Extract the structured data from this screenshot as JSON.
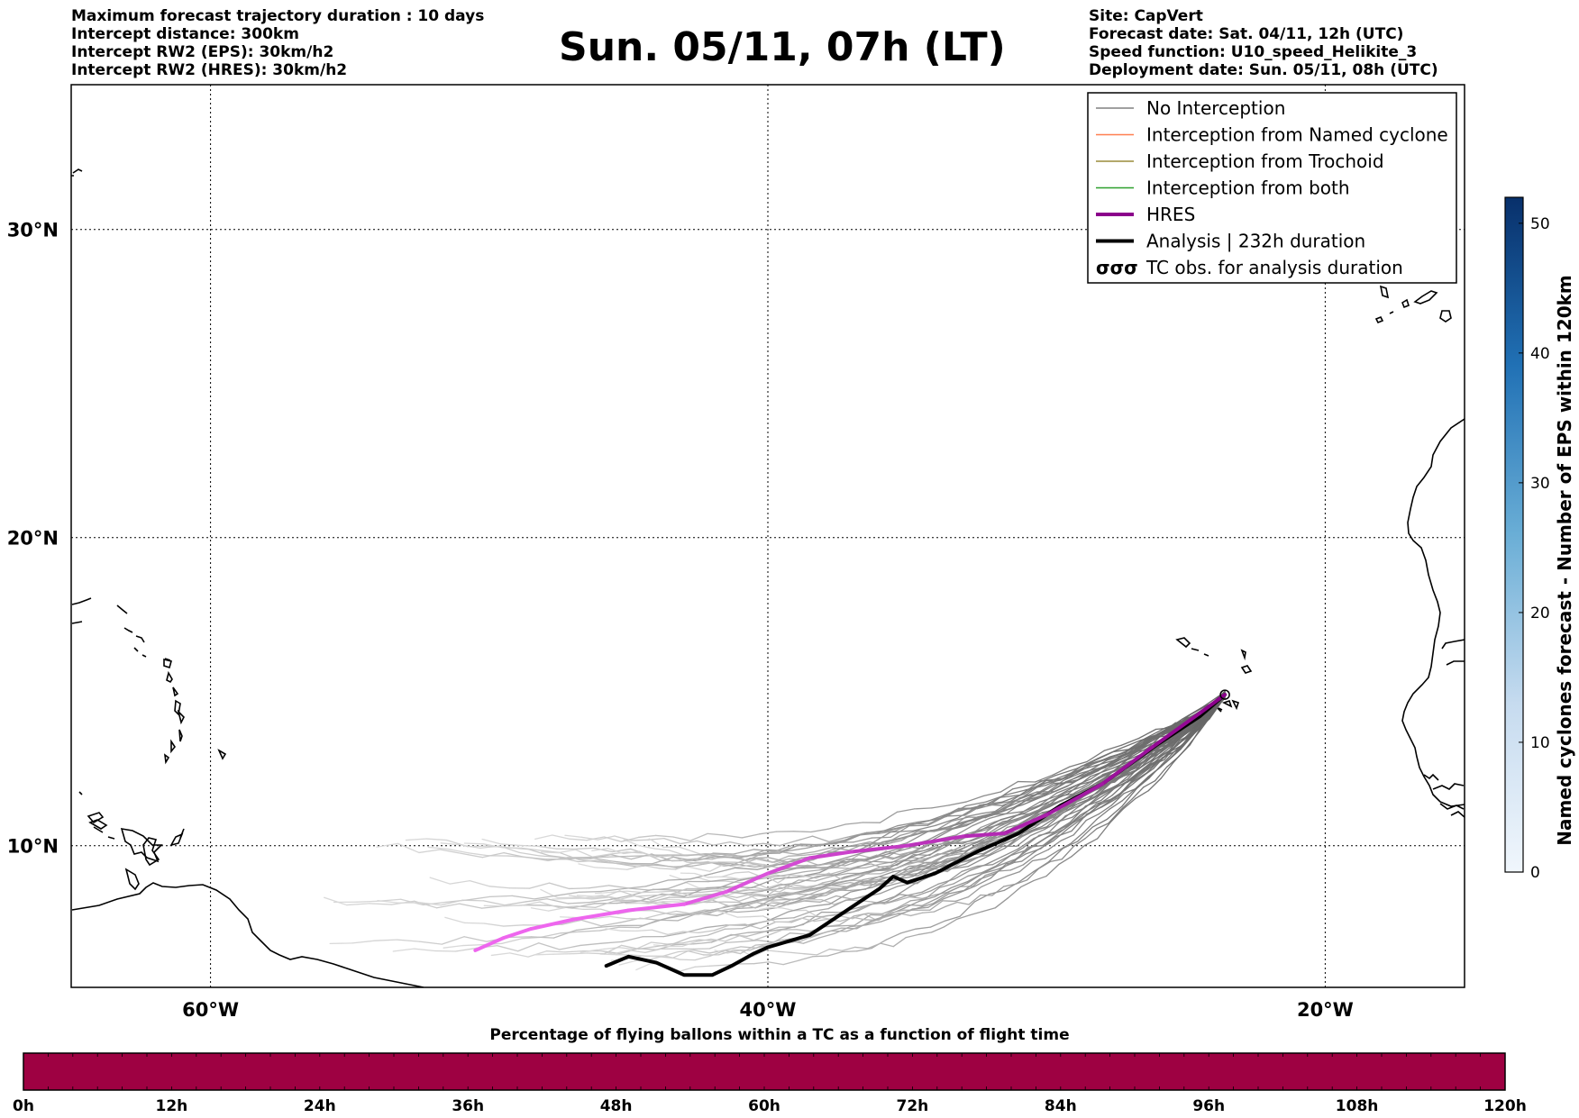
{
  "header_left": {
    "line1": "Maximum forecast trajectory duration : 10 days",
    "line2": "Intercept distance: 300km",
    "line3": "Intercept RW2 (EPS):  30km/h2",
    "line4": "Intercept RW2 (HRES): 30km/h2"
  },
  "title": "Sun. 05/11, 07h (LT)",
  "header_right": {
    "line1": "Site: CapVert",
    "line2": "Forecast date: Sat. 04/11, 12h (UTC)",
    "line3": "Speed function: U10_speed_Helikite_3",
    "line4": "Deployment date: Sun. 05/11, 08h (UTC)"
  },
  "map": {
    "lon_range": [
      -65,
      -15
    ],
    "lat_range": [
      5.4,
      34.7
    ],
    "lon_ticks": [
      {
        "value": -60,
        "label": "60°W"
      },
      {
        "value": -40,
        "label": "40°W"
      },
      {
        "value": -20,
        "label": "20°W"
      }
    ],
    "lat_ticks": [
      {
        "value": 30,
        "label": "30°N"
      },
      {
        "value": 20,
        "label": "20°N"
      },
      {
        "value": 10,
        "label": "10°N"
      }
    ],
    "grid": "dotted",
    "launch_site": {
      "lon": -23.6,
      "lat": 14.9
    }
  },
  "legend": {
    "placement": "top-right",
    "items": [
      {
        "label": "No Interception",
        "color": "#808080",
        "style": "line"
      },
      {
        "label": "Interception from Named cyclone",
        "color": "#ff7f50",
        "style": "line"
      },
      {
        "label": "Interception from Trochoid",
        "color": "#9a8c3a",
        "style": "line"
      },
      {
        "label": "Interception from both",
        "color": "#2ca02c",
        "style": "line"
      },
      {
        "label": "HRES",
        "color": "#8b008b",
        "style": "thick-line"
      },
      {
        "label": "Analysis | 232h duration",
        "color": "#000000",
        "style": "thick-line"
      },
      {
        "label": "TC obs. for analysis duration",
        "color": "#000000",
        "style": "cyclone-icon"
      }
    ]
  },
  "hres_track": {
    "color_near": "#8b008b",
    "color_far": "#ee66ee",
    "points": [
      [
        -23.6,
        14.9
      ],
      [
        -24.5,
        14.3
      ],
      [
        -26.2,
        13.2
      ],
      [
        -28,
        12
      ],
      [
        -30,
        11
      ],
      [
        -31.5,
        10.4
      ],
      [
        -33,
        10.3
      ],
      [
        -35,
        10
      ],
      [
        -37,
        9.8
      ],
      [
        -38.5,
        9.6
      ],
      [
        -40,
        9.1
      ],
      [
        -41.5,
        8.5
      ],
      [
        -43,
        8.1
      ],
      [
        -45,
        7.9
      ],
      [
        -47,
        7.6
      ],
      [
        -48.5,
        7.3
      ],
      [
        -49.5,
        7.0
      ],
      [
        -50.5,
        6.6
      ]
    ]
  },
  "analysis_track": {
    "color": "#000000",
    "points": [
      [
        -23.6,
        14.9
      ],
      [
        -24.5,
        14.2
      ],
      [
        -26,
        13.3
      ],
      [
        -28,
        12
      ],
      [
        -29.5,
        11.3
      ],
      [
        -31,
        10.4
      ],
      [
        -32.5,
        9.8
      ],
      [
        -34,
        9.1
      ],
      [
        -35,
        8.8
      ],
      [
        -35.5,
        9.0
      ],
      [
        -36,
        8.6
      ],
      [
        -37,
        8.0
      ],
      [
        -38.5,
        7.1
      ],
      [
        -40,
        6.7
      ],
      [
        -40.5,
        6.5
      ],
      [
        -41.3,
        6.1
      ],
      [
        -42,
        5.8
      ],
      [
        -43,
        5.8
      ],
      [
        -44,
        6.2
      ],
      [
        -45,
        6.4
      ],
      [
        -45.8,
        6.1
      ]
    ]
  },
  "colorbar_right": {
    "title": "Named cyclones forecast - Number of EPS within 120km",
    "ticks": [
      {
        "value": 0,
        "label": "0"
      },
      {
        "value": 10,
        "label": "10"
      },
      {
        "value": 20,
        "label": "20"
      },
      {
        "value": 30,
        "label": "30"
      },
      {
        "value": 40,
        "label": "40"
      },
      {
        "value": 50,
        "label": "50"
      }
    ],
    "range": [
      0,
      52
    ],
    "color_low": "#e8f1fa",
    "color_high": "#08306b"
  },
  "colorbar_bottom": {
    "title": "Percentage of flying ballons within a TC as a function of flight time",
    "fill_color": "#9e0142",
    "ticks": [
      "0h",
      "12h",
      "24h",
      "36h",
      "48h",
      "60h",
      "72h",
      "84h",
      "96h",
      "108h",
      "120h"
    ]
  }
}
